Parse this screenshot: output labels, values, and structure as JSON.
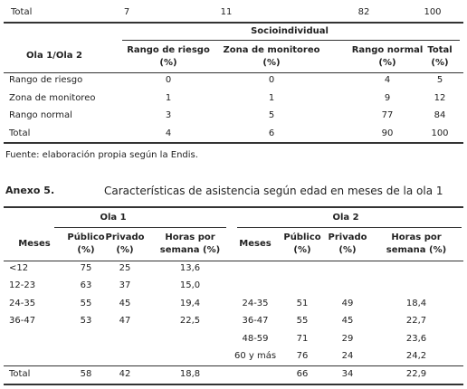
{
  "top_row": {
    "label": "Total",
    "values": [
      7,
      11,
      82,
      100
    ]
  },
  "table1": {
    "group_header": "Socioindividual",
    "corner": "Ola 1/Ola 2",
    "columns": [
      [
        "Rango de riesgo",
        "(%)"
      ],
      [
        "Zona de monitoreo",
        "(%)"
      ],
      [
        "Rango normal",
        "(%)"
      ],
      [
        "Total",
        "(%)"
      ]
    ],
    "rows": [
      [
        "Rango de riesgo",
        0,
        0,
        4,
        5
      ],
      [
        "Zona de monitoreo",
        1,
        1,
        9,
        12
      ],
      [
        "Rango normal",
        3,
        5,
        77,
        84
      ],
      [
        "Total",
        4,
        6,
        90,
        100
      ]
    ]
  },
  "source": "Fuente: elaboración propia según la Endis.",
  "annex": {
    "label": "Anexo 5.",
    "title": "Características de asistencia según edad en meses de la ola 1"
  },
  "table2": {
    "total_label": "Total",
    "groups": [
      {
        "title": "Ola 1",
        "columns": [
          [
            "Meses"
          ],
          [
            "Público",
            "(%)"
          ],
          [
            "Privado",
            "(%)"
          ],
          [
            "Horas por",
            "semana (%)"
          ]
        ],
        "rows": [
          [
            "<12",
            75,
            25,
            "13,6"
          ],
          [
            "12-23",
            63,
            37,
            "15,0"
          ],
          [
            "24-35",
            55,
            45,
            "19,4"
          ],
          [
            "36-47",
            53,
            47,
            "22,5"
          ]
        ],
        "total": [
          58,
          42,
          "18,8"
        ]
      },
      {
        "title": "Ola 2",
        "columns": [
          [
            "Meses"
          ],
          [
            "Público",
            "(%)"
          ],
          [
            "Privado",
            "(%)"
          ],
          [
            "Horas por",
            "semana (%)"
          ]
        ],
        "rows": [
          [
            "24-35",
            51,
            49,
            "18,4"
          ],
          [
            "36-47",
            55,
            45,
            "22,7"
          ],
          [
            "48-59",
            71,
            29,
            "23,6"
          ],
          [
            "60 y más",
            76,
            24,
            "24,2"
          ]
        ],
        "total": [
          66,
          34,
          "22,9"
        ]
      }
    ]
  }
}
